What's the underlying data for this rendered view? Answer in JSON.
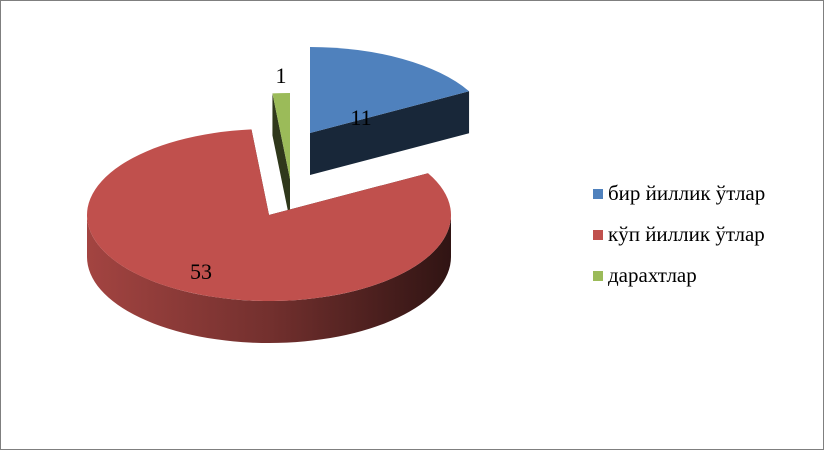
{
  "chart_data": {
    "type": "pie",
    "style": "3d-exploded",
    "title": "",
    "categories": [
      "бир йиллик ўтлар",
      "кўп йиллик ўтлар",
      "дарахтлар"
    ],
    "values": [
      11,
      53,
      1
    ],
    "data_labels": [
      "11",
      "53",
      "1"
    ],
    "colors": [
      "#4f81bd",
      "#c0504d",
      "#9bbb59"
    ],
    "legend_position": "right",
    "grid": false
  }
}
